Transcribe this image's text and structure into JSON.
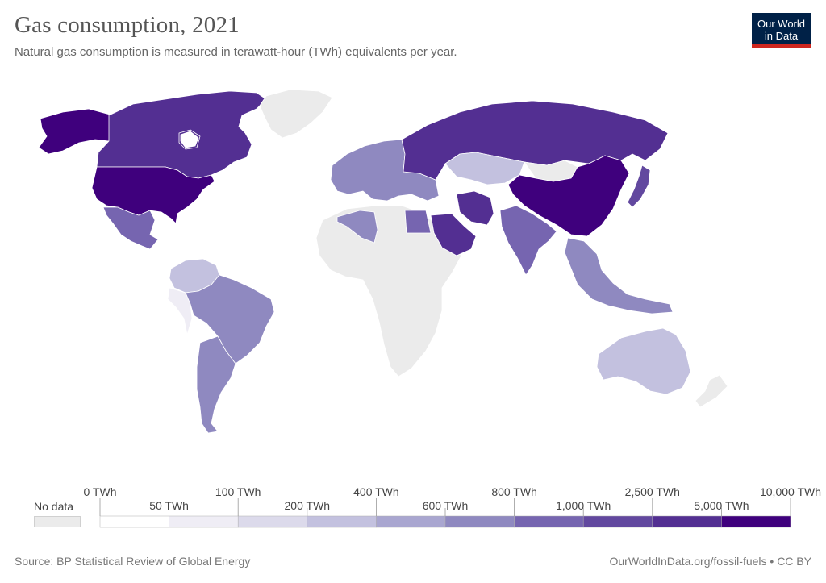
{
  "header": {
    "title": "Gas consumption, 2021",
    "subtitle": "Natural gas consumption is measured in terawatt-hour (TWh) equivalents per year."
  },
  "logo": {
    "line1": "Our World",
    "line2": "in Data"
  },
  "legend": {
    "no_data_label": "No data",
    "no_data_color": "#ebebeb",
    "bins": [
      {
        "label": "0 TWh",
        "color": "#ffffff",
        "row": "top"
      },
      {
        "label": "50 TWh",
        "color": "#efedf5",
        "row": "bottom"
      },
      {
        "label": "100 TWh",
        "color": "#dcdaeb",
        "row": "top"
      },
      {
        "label": "200 TWh",
        "color": "#c3c1df",
        "row": "bottom"
      },
      {
        "label": "400 TWh",
        "color": "#a9a6d0",
        "row": "top"
      },
      {
        "label": "600 TWh",
        "color": "#8f89c0",
        "row": "bottom"
      },
      {
        "label": "800 TWh",
        "color": "#7665b0",
        "row": "top"
      },
      {
        "label": "1,000 TWh",
        "color": "#62489f",
        "row": "bottom"
      },
      {
        "label": "2,500 TWh",
        "color": "#532f92",
        "row": "top"
      },
      {
        "label": "5,000 TWh",
        "color": "#3f007d",
        "row": "bottom"
      },
      {
        "label": "10,000 TWh",
        "color": null,
        "row": "top"
      }
    ]
  },
  "footer": {
    "source": "Source: BP Statistical Review of Global Energy",
    "url": "OurWorldInData.org/fossil-fuels • CC BY"
  },
  "map_regions": [
    {
      "name": "North America (Canada)",
      "fill": "#532f92"
    },
    {
      "name": "Alaska",
      "fill": "#3f007d"
    },
    {
      "name": "United States",
      "fill": "#3f007d"
    },
    {
      "name": "Mexico",
      "fill": "#7665b0"
    },
    {
      "name": "Greenland",
      "fill": "#ebebeb"
    },
    {
      "name": "South America (Brazil)",
      "fill": "#8f89c0"
    },
    {
      "name": "Argentina",
      "fill": "#8f89c0"
    },
    {
      "name": "Venezuela/Colombia",
      "fill": "#c3c1df"
    },
    {
      "name": "Peru/Chile west",
      "fill": "#efedf5"
    },
    {
      "name": "Africa",
      "fill": "#ebebeb"
    },
    {
      "name": "Algeria",
      "fill": "#8f89c0"
    },
    {
      "name": "Egypt",
      "fill": "#7665b0"
    },
    {
      "name": "Europe",
      "fill": "#8f89c0"
    },
    {
      "name": "Russia",
      "fill": "#532f92"
    },
    {
      "name": "Kazakhstan",
      "fill": "#c3c1df"
    },
    {
      "name": "Iran",
      "fill": "#532f92"
    },
    {
      "name": "Saudi Arabia",
      "fill": "#532f92"
    },
    {
      "name": "India",
      "fill": "#7665b0"
    },
    {
      "name": "China",
      "fill": "#3f007d"
    },
    {
      "name": "Mongolia",
      "fill": "#ebebeb"
    },
    {
      "name": "Japan",
      "fill": "#62489f"
    },
    {
      "name": "Southeast Asia",
      "fill": "#8f89c0"
    },
    {
      "name": "Australia",
      "fill": "#c3c1df"
    },
    {
      "name": "New Zealand",
      "fill": "#ebebeb"
    }
  ]
}
